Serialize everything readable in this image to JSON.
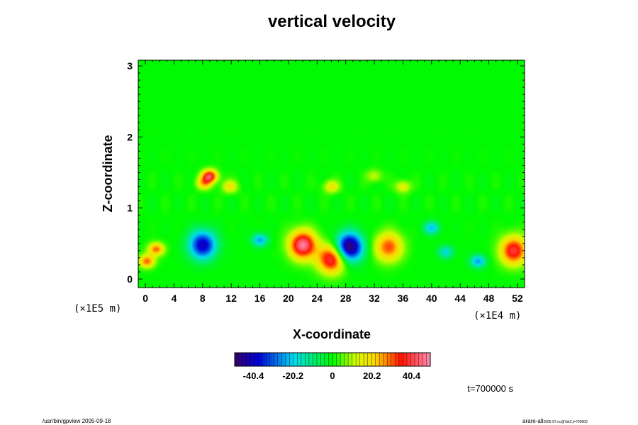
{
  "chart_data": {
    "type": "heatmap",
    "title": "vertical velocity",
    "xlabel": "X-coordinate",
    "ylabel": "Z-coordinate",
    "x_scale_note": "(×1E4 m)",
    "y_scale_note": "(×1E5 m)",
    "xlim": [
      -1,
      53
    ],
    "ylim": [
      -0.12,
      3.08
    ],
    "x_ticks": [
      0,
      4,
      8,
      12,
      16,
      20,
      24,
      28,
      32,
      36,
      40,
      44,
      48,
      52
    ],
    "x_tick_labels": [
      "0",
      "4",
      "8",
      "12",
      "16",
      "20",
      "24",
      "28",
      "32",
      "36",
      "40",
      "44",
      "48",
      "52"
    ],
    "y_ticks": [
      0,
      1,
      2,
      3
    ],
    "y_tick_labels": [
      "0",
      "1",
      "2",
      "3"
    ],
    "colorbar": {
      "min": -50,
      "max": 50,
      "tick_values": [
        -40.4,
        -20.2,
        0,
        20.2,
        40.4
      ],
      "tick_labels": [
        "-40.4",
        "-20.2",
        "0",
        "20.2",
        "40.4"
      ]
    },
    "features": [
      {
        "x": 1.5,
        "z": 0.42,
        "value": 30
      },
      {
        "x": 0.2,
        "z": 0.25,
        "value": 30
      },
      {
        "x": 8.0,
        "z": 0.48,
        "value": -42
      },
      {
        "x": 16.0,
        "z": 0.55,
        "value": -25
      },
      {
        "x": 22.0,
        "z": 0.48,
        "value": 48
      },
      {
        "x": 26.0,
        "z": 0.28,
        "value": 42
      },
      {
        "x": 28.5,
        "z": 0.45,
        "value": -52
      },
      {
        "x": 34.0,
        "z": 0.45,
        "value": 32
      },
      {
        "x": 40.0,
        "z": 0.72,
        "value": -22
      },
      {
        "x": 42.0,
        "z": 0.38,
        "value": -18
      },
      {
        "x": 46.5,
        "z": 0.25,
        "value": -25
      },
      {
        "x": 51.5,
        "z": 0.4,
        "value": 40
      },
      {
        "x": 9.0,
        "z": 1.45,
        "value": 40
      },
      {
        "x": 8.2,
        "z": 1.35,
        "value": 22
      },
      {
        "x": 11.8,
        "z": 1.3,
        "value": 18
      },
      {
        "x": 26.0,
        "z": 1.3,
        "value": 18
      },
      {
        "x": 36.0,
        "z": 1.3,
        "value": 16
      },
      {
        "x": 32.0,
        "z": 1.45,
        "value": 12
      }
    ]
  },
  "footer": {
    "time_label": "t=700000 s",
    "left_text": "/usr/bin/gpview 2005-09-18",
    "right_text": "arare-all",
    "right_subtext": "2005-07.nc@VelZ,t=700000"
  }
}
